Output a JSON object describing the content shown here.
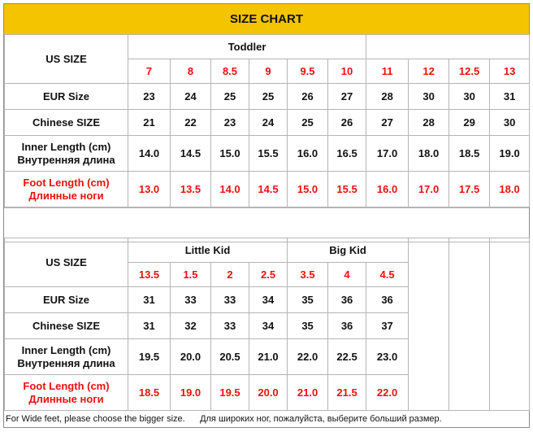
{
  "title": "SIZE CHART",
  "colors": {
    "header_bg": "#f5c400",
    "accent_red": "#e8110f",
    "border": "#b5b5b5"
  },
  "top": {
    "us_label": "US SIZE",
    "group_label": "Toddler",
    "us": [
      "7",
      "8",
      "8.5",
      "9",
      "9.5",
      "10",
      "11",
      "12",
      "12.5",
      "13"
    ],
    "eur_label": "EUR Size",
    "eur": [
      "23",
      "24",
      "25",
      "25",
      "26",
      "27",
      "28",
      "30",
      "30",
      "31"
    ],
    "chinese_label": "Chinese SIZE",
    "chinese": [
      "21",
      "22",
      "23",
      "24",
      "25",
      "26",
      "27",
      "28",
      "29",
      "30"
    ],
    "inner_label_en": "Inner Length (cm)",
    "inner_label_ru": "Внутренняя длина",
    "inner": [
      "14.0",
      "14.5",
      "15.0",
      "15.5",
      "16.0",
      "16.5",
      "17.0",
      "18.0",
      "18.5",
      "19.0"
    ],
    "foot_label_en": "Foot Length (cm)",
    "foot_label_ru": "Длинные ноги",
    "foot": [
      "13.0",
      "13.5",
      "14.0",
      "14.5",
      "15.0",
      "15.5",
      "16.0",
      "17.0",
      "17.5",
      "18.0"
    ]
  },
  "bottom": {
    "us_label": "US SIZE",
    "group1_label": "Little Kid",
    "group2_label": "Big Kid",
    "us": [
      "13.5",
      "1.5",
      "2",
      "2.5",
      "3.5",
      "4",
      "4.5"
    ],
    "eur_label": "EUR Size",
    "eur": [
      "31",
      "33",
      "33",
      "34",
      "35",
      "36",
      "36"
    ],
    "chinese_label": "Chinese SIZE",
    "chinese": [
      "31",
      "32",
      "33",
      "34",
      "35",
      "36",
      "37"
    ],
    "inner_label_en": "Inner Length (cm)",
    "inner_label_ru": "Внутренняя длина",
    "inner": [
      "19.5",
      "20.0",
      "20.5",
      "21.0",
      "22.0",
      "22.5",
      "23.0"
    ],
    "foot_label_en": "Foot Length (cm)",
    "foot_label_ru": "Длинные ноги",
    "foot": [
      "18.5",
      "19.0",
      "19.5",
      "20.0",
      "21.0",
      "21.5",
      "22.0"
    ]
  },
  "footnote": "For Wide feet, please choose the bigger size.      Для широких ног, пожалуйста, выберите больший размер."
}
